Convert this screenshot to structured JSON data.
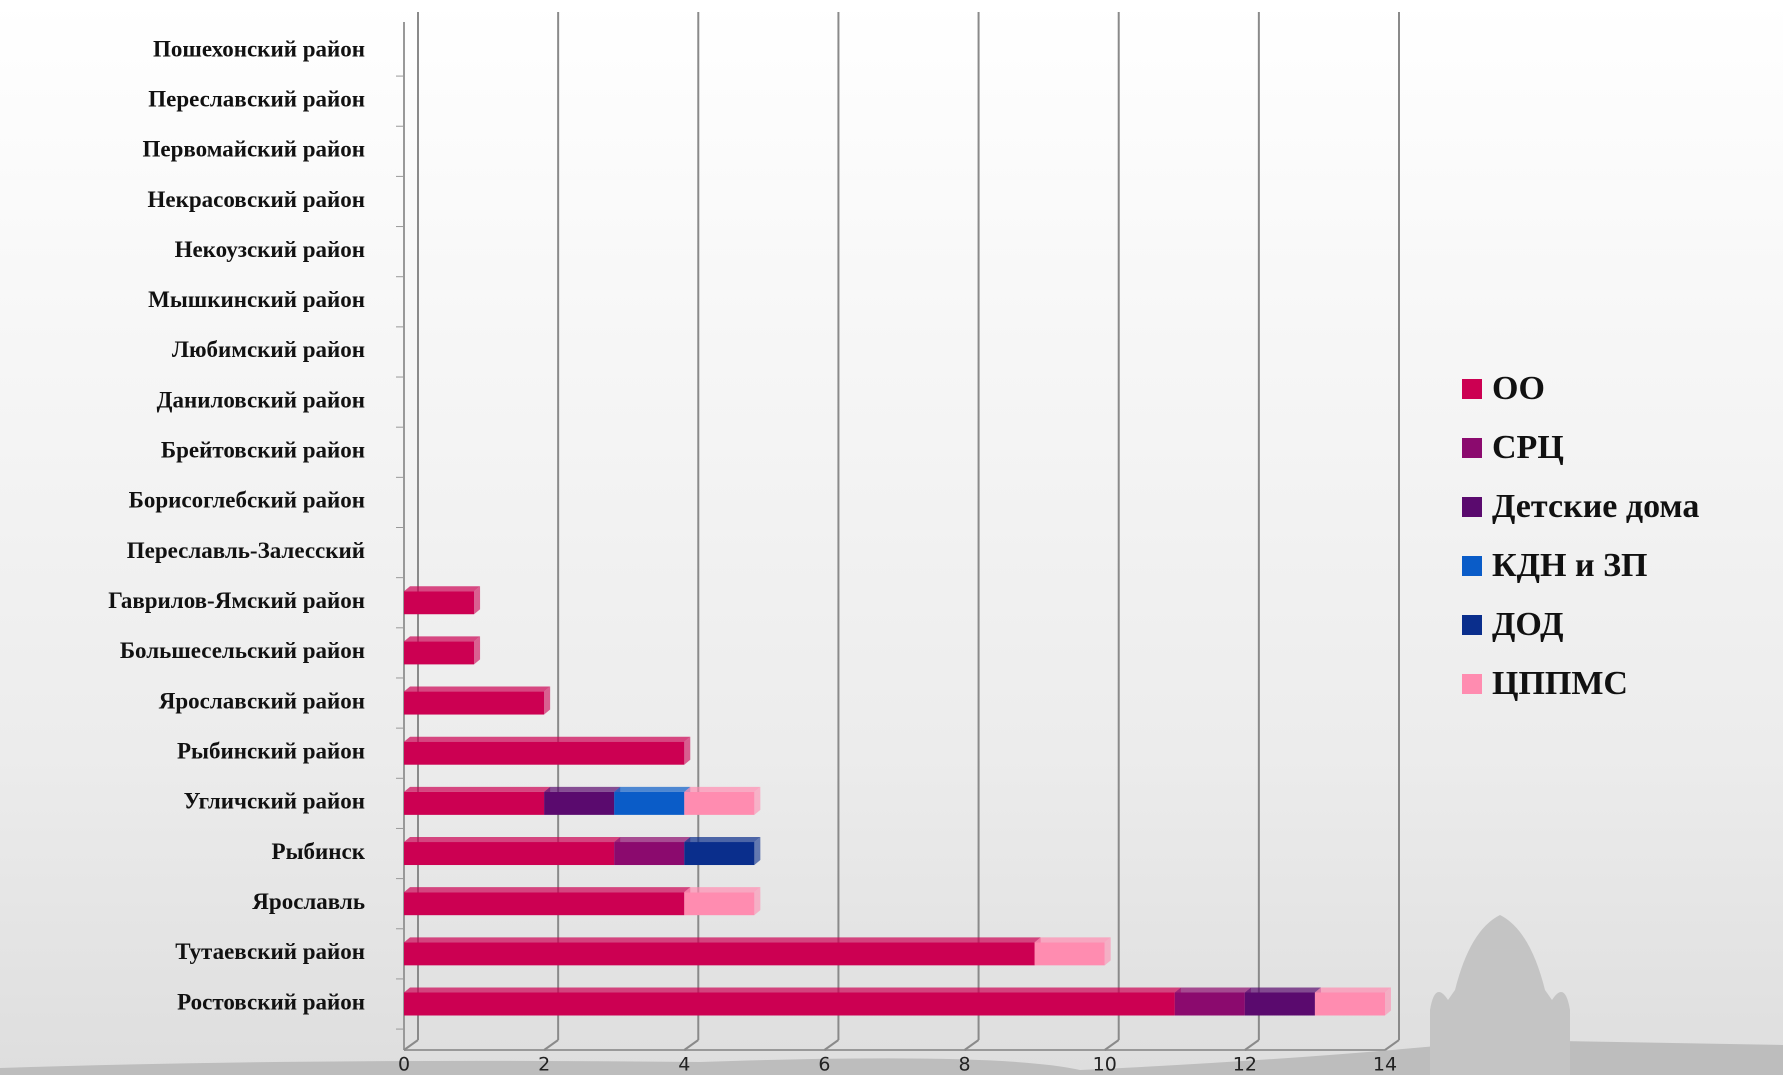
{
  "chart_data": {
    "type": "bar",
    "orientation": "horizontal",
    "stacked": true,
    "categories": [
      "Ростовский район",
      "Тутаевский район",
      "Ярославль",
      "Рыбинск",
      "Угличский район",
      "Рыбинский район",
      "Ярославский район",
      "Большесельский район",
      "Гаврилов-Ямский район",
      "Переславль-Залесский",
      "Борисоглебский район",
      "Брейтовский район",
      "Даниловский район",
      "Любимский район",
      "Мышкинский район",
      "Некоузский район",
      "Некрасовский район",
      "Первомайский район",
      "Переславский район",
      "Пошехонский район"
    ],
    "series": [
      {
        "name": "ОО",
        "color": "#cc0052",
        "values": [
          11,
          9,
          4,
          3,
          2,
          4,
          2,
          1,
          1,
          0,
          0,
          0,
          0,
          0,
          0,
          0,
          0,
          0,
          0,
          0
        ]
      },
      {
        "name": "СРЦ",
        "color": "#8b0a6e",
        "values": [
          1,
          0,
          0,
          1,
          0,
          0,
          0,
          0,
          0,
          0,
          0,
          0,
          0,
          0,
          0,
          0,
          0,
          0,
          0,
          0
        ]
      },
      {
        "name": "Детские дома",
        "color": "#5a0a6e",
        "values": [
          1,
          0,
          0,
          0,
          1,
          0,
          0,
          0,
          0,
          0,
          0,
          0,
          0,
          0,
          0,
          0,
          0,
          0,
          0,
          0
        ]
      },
      {
        "name": "КДН и ЗП",
        "color": "#0a5cc8",
        "values": [
          0,
          0,
          0,
          0,
          1,
          0,
          0,
          0,
          0,
          0,
          0,
          0,
          0,
          0,
          0,
          0,
          0,
          0,
          0,
          0
        ]
      },
      {
        "name": "ДОД",
        "color": "#0a2e8c",
        "values": [
          0,
          0,
          0,
          1,
          0,
          0,
          0,
          0,
          0,
          0,
          0,
          0,
          0,
          0,
          0,
          0,
          0,
          0,
          0,
          0
        ]
      },
      {
        "name": "ЦППМС",
        "color": "#ff8cb0",
        "values": [
          1,
          1,
          1,
          0,
          1,
          0,
          0,
          0,
          0,
          0,
          0,
          0,
          0,
          0,
          0,
          0,
          0,
          0,
          0,
          0
        ]
      }
    ],
    "xlim": [
      0,
      14
    ],
    "xticks": [
      0,
      2,
      4,
      6,
      8,
      10,
      12,
      14
    ],
    "grid": true,
    "legend": "right"
  }
}
